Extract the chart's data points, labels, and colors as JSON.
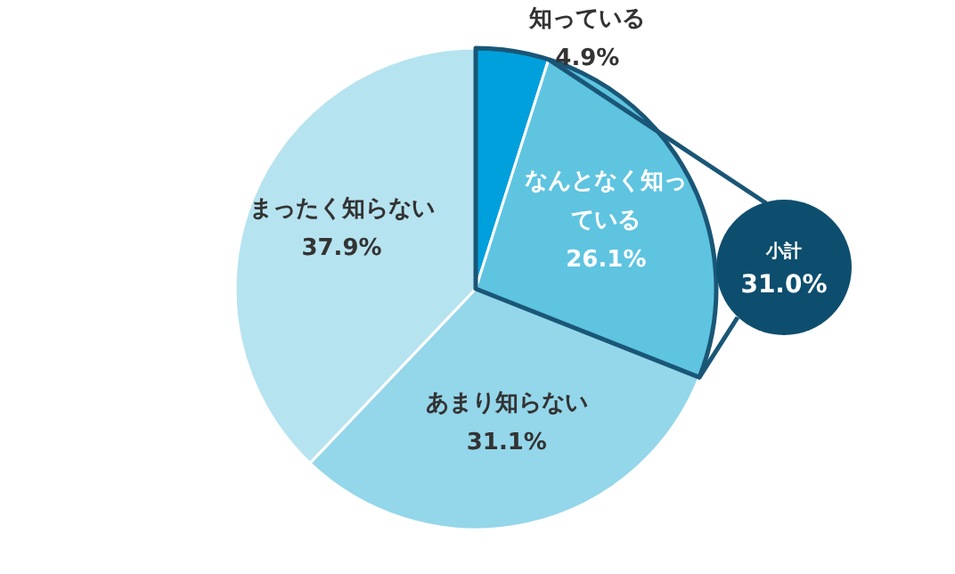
{
  "chart_data": {
    "type": "pie",
    "categories": [
      "知っている",
      "なんとなく知っている",
      "あまり知らない",
      "まったく知らない"
    ],
    "values": [
      4.9,
      26.1,
      31.1,
      37.9
    ],
    "colors": [
      "#00a0dc",
      "#5ec4e0",
      "#94d6ea",
      "#b6e3f0"
    ],
    "value_labels": [
      "4.9%",
      "26.1%",
      "31.1%",
      "37.9%"
    ],
    "annotations": [
      "小計",
      "31.0%"
    ]
  }
}
